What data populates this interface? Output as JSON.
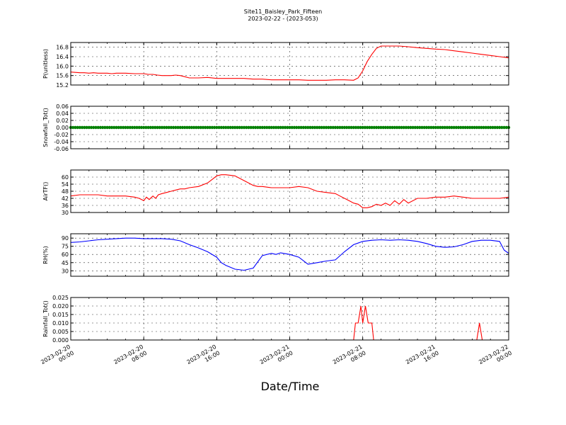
{
  "chart_title": {
    "line1": "Site11_Baisley_Park_Fifteen",
    "line2": "2023-02-22 - (2023-053)"
  },
  "x_axis": {
    "label": "Date/Time",
    "ticks": [
      {
        "hour": 0,
        "line1": "2023-02-20",
        "line2": "00:00"
      },
      {
        "hour": 8,
        "line1": "2023-02-20",
        "line2": "08:00"
      },
      {
        "hour": 16,
        "line1": "2023-02-20",
        "line2": "16:00"
      },
      {
        "hour": 24,
        "line1": "2023-02-21",
        "line2": "00:00"
      },
      {
        "hour": 32,
        "line1": "2023-02-21",
        "line2": "08:00"
      },
      {
        "hour": 40,
        "line1": "2023-02-21",
        "line2": "16:00"
      },
      {
        "hour": 48,
        "line1": "2023-02-22",
        "line2": "00:00"
      }
    ],
    "range_hours": [
      0,
      48
    ]
  },
  "chart_data": [
    {
      "type": "line",
      "ylabel": "P(unitless)",
      "color": "#ff0000",
      "ylim": [
        15.2,
        17.0
      ],
      "yticks": [
        "15.2",
        "15.6",
        "16.0",
        "16.4",
        "16.8"
      ],
      "x": [
        0,
        1,
        1.5,
        2,
        2.5,
        3,
        3.5,
        4,
        4.5,
        5,
        6,
        7,
        8,
        8.5,
        9,
        9.5,
        10,
        10.5,
        11,
        11.5,
        12,
        12.5,
        13,
        14,
        15,
        16,
        17,
        18,
        19,
        20,
        21,
        22,
        23,
        24,
        25,
        26,
        27,
        28,
        29,
        30,
        31,
        31.5,
        32,
        32.5,
        33,
        33.5,
        34,
        35,
        36,
        37,
        38,
        39,
        40,
        41,
        42,
        43,
        44,
        45,
        46,
        47,
        48
      ],
      "y": [
        15.75,
        15.72,
        15.72,
        15.7,
        15.72,
        15.7,
        15.7,
        15.7,
        15.68,
        15.7,
        15.7,
        15.68,
        15.68,
        15.65,
        15.65,
        15.62,
        15.6,
        15.6,
        15.6,
        15.62,
        15.6,
        15.55,
        15.5,
        15.5,
        15.52,
        15.48,
        15.48,
        15.48,
        15.48,
        15.45,
        15.45,
        15.42,
        15.42,
        15.42,
        15.42,
        15.4,
        15.4,
        15.4,
        15.42,
        15.42,
        15.4,
        15.5,
        15.8,
        16.2,
        16.5,
        16.75,
        16.85,
        16.85,
        16.85,
        16.82,
        16.78,
        16.75,
        16.72,
        16.7,
        16.65,
        16.6,
        16.55,
        16.5,
        16.45,
        16.4,
        16.35
      ]
    },
    {
      "type": "scatter",
      "ylabel": "Snowfall_Tot()",
      "color": "#008000",
      "ylim": [
        -0.06,
        0.06
      ],
      "yticks": [
        "-0.06",
        "-0.04",
        "-0.02",
        "0.00",
        "0.02",
        "0.04",
        "0.06"
      ],
      "constant_value": 0.0,
      "interval_hours": 0.25
    },
    {
      "type": "line",
      "ylabel": "AirTF()",
      "color": "#ff0000",
      "ylim": [
        30,
        66
      ],
      "yticks": [
        "30",
        "36",
        "42",
        "48",
        "54",
        "60"
      ],
      "x": [
        0,
        1,
        2,
        3,
        4,
        5,
        6,
        7,
        7.5,
        8,
        8.3,
        8.6,
        9,
        9.3,
        9.6,
        10,
        10.5,
        11,
        11.5,
        12,
        12.5,
        13,
        14,
        15,
        15.5,
        16,
        16.5,
        17,
        18,
        19,
        20,
        20.5,
        21,
        22,
        23,
        24,
        25,
        26,
        27,
        28,
        29,
        29.5,
        30,
        30.5,
        31,
        31.5,
        32,
        32.5,
        33,
        33.5,
        34,
        34.5,
        35,
        35.5,
        36,
        36.5,
        37,
        38,
        39,
        40,
        41,
        42,
        43,
        44,
        45,
        46,
        47,
        48
      ],
      "y": [
        44,
        45,
        45,
        45,
        44,
        44,
        44,
        43,
        42,
        40,
        43,
        41,
        44,
        42,
        45,
        46,
        47,
        48,
        49,
        50,
        50,
        51,
        52,
        55,
        58,
        61,
        62,
        62,
        61,
        57,
        53,
        52,
        52,
        51,
        51,
        51,
        52,
        51,
        48,
        47,
        46,
        44,
        42,
        40,
        38,
        37,
        34,
        34,
        35,
        37,
        36,
        38,
        36,
        40,
        37,
        41,
        38,
        42,
        42,
        43,
        43,
        44,
        43,
        42,
        42,
        42,
        42,
        43
      ]
    },
    {
      "type": "line",
      "ylabel": "RH(%)",
      "color": "#0000ff",
      "ylim": [
        20,
        98
      ],
      "yticks": [
        "30",
        "45",
        "60",
        "75",
        "90"
      ],
      "x": [
        0,
        1,
        2,
        3,
        4,
        5,
        6,
        7,
        8,
        9,
        10,
        11,
        12,
        13,
        14,
        15,
        16,
        16.5,
        17,
        18,
        19,
        20,
        21,
        22,
        22.5,
        23,
        24,
        25,
        26,
        27,
        28,
        29,
        30,
        31,
        32,
        33,
        34,
        35,
        36,
        37,
        38,
        39,
        40,
        41,
        42,
        43,
        44,
        45,
        46,
        47,
        47.5,
        48
      ],
      "y": [
        82,
        83,
        85,
        87,
        88,
        89,
        90,
        90,
        89,
        89,
        89,
        88,
        85,
        78,
        72,
        65,
        55,
        45,
        40,
        33,
        31,
        35,
        58,
        62,
        60,
        63,
        60,
        55,
        42,
        45,
        48,
        50,
        65,
        78,
        84,
        86,
        87,
        86,
        87,
        86,
        84,
        80,
        75,
        73,
        74,
        78,
        84,
        86,
        86,
        84,
        68,
        62
      ]
    },
    {
      "type": "line",
      "ylabel": "Rainfall_Tot()",
      "color": "#ff0000",
      "ylim": [
        0.0,
        0.025
      ],
      "yticks": [
        "0.000",
        "0.005",
        "0.010",
        "0.015",
        "0.020",
        "0.025"
      ],
      "x": [
        0,
        31,
        31.2,
        31.5,
        31.8,
        32.0,
        32.3,
        32.6,
        33.0,
        33.2,
        33.5,
        44.5,
        44.8,
        45.1,
        48
      ],
      "y": [
        0,
        0,
        0.01,
        0.01,
        0.02,
        0.01,
        0.02,
        0.01,
        0.01,
        0,
        0,
        0,
        0.01,
        0,
        0
      ]
    }
  ]
}
